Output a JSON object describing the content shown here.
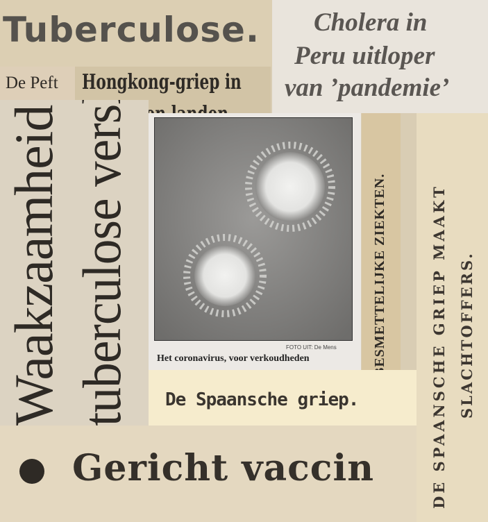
{
  "clippings": {
    "tuberculose": "Tuberculose.",
    "cholera": [
      "Cholera in",
      "Peru uitloper",
      "van ’pandemie’"
    ],
    "de_pest": "De Peft",
    "hongkong": [
      "Hongkong-griep in",
      "veertien landen"
    ],
    "waakzaamheid": [
      "Waakzaamheid voor",
      "tuberculose verslapt"
    ],
    "photo_credit": "FOTO UIT: De Mens",
    "photo_caption": "Het coronavirus, voor verkoudheden",
    "besmettelijke": "BESMETTELIJKE ZIEKTEN.",
    "spaansche_maakt": [
      "DE SPAANSCHE GRIEP MAAKT",
      "SLACHTOFFERS."
    ],
    "spaansche_griep": "De Spaansche griep.",
    "gericht_vaccin": "Gericht vaccin"
  }
}
